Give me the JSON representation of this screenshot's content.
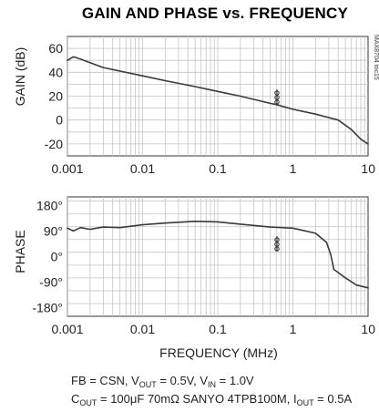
{
  "title": "GAIN AND PHASE vs. FREQUENCY",
  "doc_id": "MAX8704 toc15",
  "chart_data": [
    {
      "type": "line",
      "name": "gain",
      "ylabel": "GAIN (dB)",
      "xscale": "log",
      "xlim": [
        0.001,
        10
      ],
      "ylim": [
        -30,
        70
      ],
      "grid": true,
      "x_ticks": [
        0.001,
        0.01,
        0.1,
        1,
        10
      ],
      "x_tick_labels": [
        "0.001",
        "0.01",
        "0.1",
        "1",
        "10"
      ],
      "y_ticks": [
        60,
        40,
        20,
        0,
        -20
      ],
      "y_tick_labels": [
        "60",
        "40",
        "20",
        "0",
        "-20"
      ],
      "series": [
        {
          "x": [
            0.001,
            0.0012,
            0.0015,
            0.002,
            0.003,
            0.005,
            0.01,
            0.02,
            0.05,
            0.1,
            0.2,
            0.5,
            0.6,
            1,
            2,
            4,
            6,
            8,
            10
          ],
          "y": [
            50,
            53,
            51,
            48,
            44,
            41,
            37,
            33,
            28,
            24,
            20,
            14,
            13,
            9,
            5,
            0,
            -8,
            -16,
            -20
          ]
        }
      ]
    },
    {
      "type": "line",
      "name": "phase",
      "ylabel": "PHASE",
      "xlabel": "FREQUENCY (MHz)",
      "xscale": "log",
      "xlim": [
        0.001,
        10
      ],
      "ylim": [
        -210,
        210
      ],
      "grid": true,
      "x_ticks": [
        0.001,
        0.01,
        0.1,
        1,
        10
      ],
      "x_tick_labels": [
        "0.001",
        "0.01",
        "0.1",
        "1",
        "10"
      ],
      "y_ticks": [
        180,
        90,
        0,
        -90,
        -180
      ],
      "y_tick_labels": [
        "180°",
        "90°",
        "0°",
        "-90°",
        "-180°"
      ],
      "series": [
        {
          "x": [
            0.001,
            0.0012,
            0.0015,
            0.002,
            0.003,
            0.005,
            0.01,
            0.02,
            0.05,
            0.1,
            0.2,
            0.5,
            1,
            2,
            2.8,
            3.2,
            3.5,
            5,
            7,
            10
          ],
          "y": [
            100,
            90,
            102,
            96,
            104,
            102,
            112,
            118,
            124,
            122,
            114,
            104,
            100,
            82,
            50,
            5,
            -45,
            -75,
            -100,
            -110
          ]
        }
      ]
    }
  ],
  "notes": {
    "line1": {
      "a": "FB = CSN, V",
      "a_sub": "OUT",
      "b": " = 0.5V, V",
      "b_sub": "IN",
      "c": " = 1.0V"
    },
    "line2": {
      "a": "C",
      "a_sub": "OUT",
      "b": " = 100μF 70mΩ SANYO 4TPB100M, I",
      "b_sub": "OUT",
      "c": " = 0.5A"
    }
  }
}
